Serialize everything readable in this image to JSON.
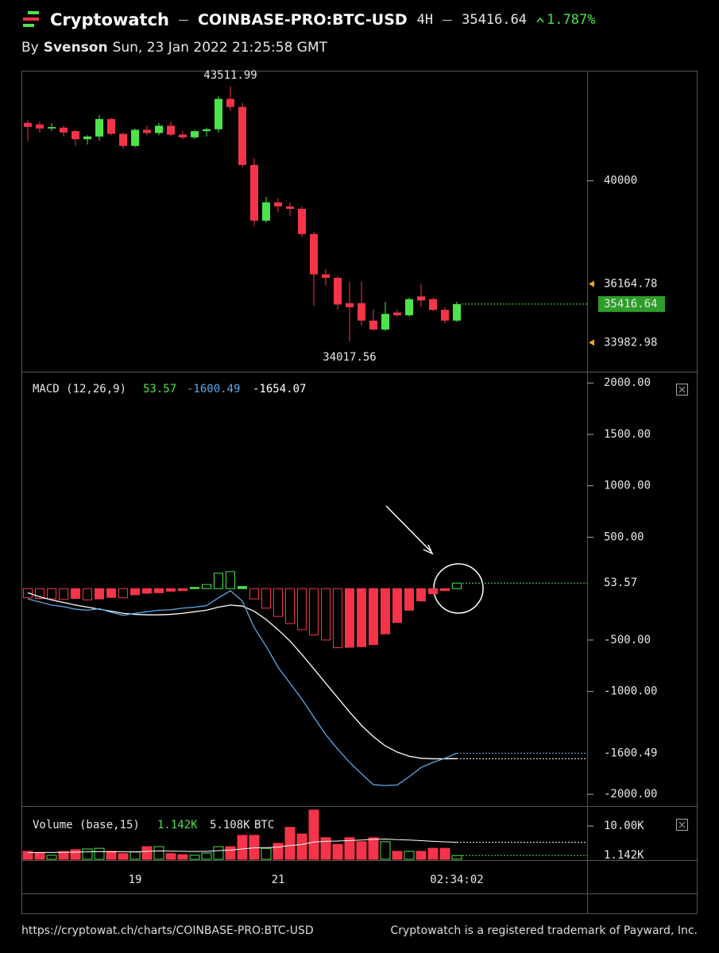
{
  "header": {
    "brand": "Cryptowatch",
    "pair": "COINBASE-PRO:BTC-USD",
    "interval": "4H",
    "change": "1.787%",
    "by": "By",
    "author": "Svenson",
    "date": "Sun, 23 Jan 2022 21:25:58 GMT"
  },
  "footer": {
    "url": "https://cryptowat.ch/charts/COINBASE-PRO:BTC-USD",
    "trademark": "Cryptowatch is a registered trademark of Payward, Inc."
  },
  "chart_data": [
    {
      "type": "candlestick",
      "up_color": "#4de34b",
      "down_color": "#f5344a",
      "marker_color": "#f5a623",
      "ylim": [
        32900,
        44100
      ],
      "yticks": [
        40000
      ],
      "open": [
        42160,
        42100,
        41950,
        41980,
        41850,
        41550,
        41650,
        42300,
        41750,
        41300,
        41900,
        41780,
        42050,
        41720,
        41620,
        41850,
        41920,
        43050,
        42750,
        40590,
        38520,
        39200,
        39050,
        38960,
        38020,
        36520,
        36390,
        35450,
        35450,
        34800,
        34470,
        35100,
        35000,
        35700,
        35600,
        35200,
        34800
      ],
      "high": [
        42250,
        42200,
        42150,
        42050,
        41900,
        41700,
        42450,
        42350,
        41800,
        41950,
        42050,
        42150,
        42200,
        41850,
        41900,
        41980,
        43150,
        43511.99,
        42900,
        40830,
        39400,
        39350,
        39200,
        39050,
        38100,
        36720,
        36450,
        36250,
        36250,
        35220,
        35500,
        35200,
        35650,
        36164.78,
        35650,
        35300,
        35500
      ],
      "low": [
        41480,
        41800,
        41850,
        41650,
        41300,
        41350,
        41500,
        41700,
        41200,
        41250,
        41700,
        41700,
        41650,
        41550,
        41550,
        41650,
        41800,
        42600,
        40500,
        38320,
        38450,
        38850,
        38700,
        37900,
        35360,
        36100,
        35200,
        34017.56,
        34620,
        34420,
        34420,
        34950,
        34950,
        35300,
        35150,
        34700,
        34750
      ],
      "close": [
        42010,
        41950,
        42000,
        41800,
        41550,
        41650,
        42300,
        41750,
        41300,
        41900,
        41780,
        42050,
        41720,
        41620,
        41850,
        41920,
        43050,
        42750,
        40590,
        38520,
        39200,
        39050,
        38960,
        38020,
        36520,
        36390,
        35400,
        35300,
        34800,
        34470,
        35050,
        35000,
        35600,
        35550,
        35200,
        34800,
        35416.64
      ],
      "markers": [
        36164.78,
        33982.98
      ]
    },
    {
      "type": "macd",
      "label": "MACD (12,26,9)",
      "up_color": "#4de34b",
      "down_color": "#f5344a",
      "ylim": [
        -2115,
        2110
      ],
      "yticks": [
        {
          "value": 2000,
          "label": "2000.00"
        },
        {
          "value": 1500,
          "label": "1500.00"
        },
        {
          "value": 1000,
          "label": "1000.00"
        },
        {
          "value": 500,
          "label": "500.00"
        },
        {
          "value": -500,
          "label": "-500.00"
        },
        {
          "value": -1000,
          "label": "-1000.00"
        },
        {
          "value": -2000,
          "label": "-2000.00"
        }
      ],
      "histogram": {
        "values": [
          -90,
          -95,
          -100,
          -105,
          -95,
          -110,
          -100,
          -85,
          -90,
          -60,
          -45,
          -40,
          -25,
          -20,
          12,
          40,
          150,
          165,
          20,
          -100,
          -190,
          -270,
          -340,
          -400,
          -450,
          -500,
          -575,
          -570,
          -565,
          -545,
          -440,
          -330,
          -210,
          -120,
          -50,
          -20,
          53.57
        ]
      },
      "macd": {
        "color": "#5aa9e6",
        "values": [
          -100,
          -130,
          -160,
          -175,
          -200,
          -210,
          -195,
          -230,
          -260,
          -240,
          -225,
          -210,
          -205,
          -190,
          -180,
          -165,
          -90,
          -20,
          -120,
          -380,
          -560,
          -765,
          -920,
          -1075,
          -1250,
          -1420,
          -1560,
          -1690,
          -1800,
          -1907,
          -1915,
          -1910,
          -1830,
          -1740,
          -1690,
          -1650,
          -1600.49
        ]
      },
      "signal": {
        "color": "#ffffff",
        "values": [
          -40,
          -80,
          -110,
          -135,
          -160,
          -180,
          -200,
          -220,
          -240,
          -250,
          -255,
          -255,
          -250,
          -240,
          -225,
          -210,
          -180,
          -160,
          -170,
          -220,
          -300,
          -400,
          -510,
          -640,
          -780,
          -920,
          -1060,
          -1200,
          -1330,
          -1440,
          -1530,
          -1590,
          -1630,
          -1650,
          -1655,
          -1655,
          -1654.07
        ]
      }
    },
    {
      "type": "bar",
      "label": "Volume (base,15)",
      "unit": "BTC",
      "ylim": [
        0,
        16000
      ],
      "yticks": [
        {
          "value": 10000,
          "label": "10.00K"
        }
      ],
      "values": [
        2400,
        1900,
        1200,
        2400,
        2900,
        3100,
        3300,
        2400,
        1700,
        2200,
        3800,
        3800,
        1700,
        1400,
        1200,
        1900,
        3800,
        3800,
        7200,
        7200,
        3300,
        4800,
        9600,
        7600,
        14800,
        6500,
        4500,
        6500,
        5300,
        6500,
        5300,
        2400,
        2400,
        2400,
        3300,
        3300,
        1142
      ],
      "value_labels": [
        null,
        null,
        null,
        null,
        null,
        null,
        null,
        null,
        null,
        null,
        null,
        null,
        null,
        null,
        null,
        null,
        null,
        null,
        null,
        null,
        null,
        null,
        null,
        null,
        null,
        null,
        null,
        null,
        null,
        null,
        null,
        null,
        null,
        null,
        null,
        null,
        "1.142K"
      ],
      "ma": {
        "color": "#ffffff",
        "values": [
          2000,
          2050,
          2050,
          2100,
          2150,
          2250,
          2300,
          2300,
          2250,
          2250,
          2400,
          2500,
          2450,
          2400,
          2350,
          2400,
          2600,
          2750,
          3100,
          3450,
          3500,
          3650,
          4150,
          4450,
          5200,
          5400,
          5500,
          5650,
          5800,
          6000,
          6100,
          5900,
          5800,
          5600,
          5400,
          5250,
          5108
        ],
        "value_labels": [
          null,
          null,
          null,
          null,
          null,
          null,
          null,
          null,
          null,
          null,
          null,
          null,
          null,
          null,
          null,
          null,
          null,
          null,
          null,
          null,
          null,
          null,
          null,
          null,
          null,
          null,
          null,
          null,
          null,
          null,
          null,
          null,
          null,
          null,
          null,
          null,
          "5.108K"
        ]
      },
      "categories": [
        null,
        null,
        null,
        null,
        null,
        null,
        null,
        null,
        null,
        "19",
        null,
        null,
        null,
        null,
        null,
        null,
        null,
        null,
        null,
        null,
        null,
        "21",
        null,
        null,
        null,
        null,
        null,
        null,
        null,
        null,
        null,
        null,
        null,
        null,
        null,
        null,
        null
      ],
      "timer": "02:34:02"
    }
  ]
}
